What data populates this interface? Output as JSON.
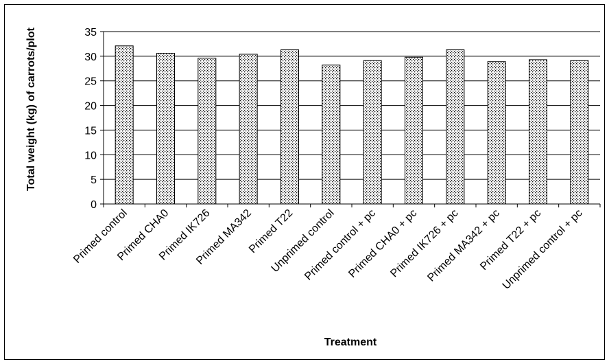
{
  "chart_data": {
    "type": "bar",
    "title": "",
    "xlabel": "Treatment",
    "ylabel": "Total weight (kg) of carrots/plot",
    "ylim": [
      0,
      35
    ],
    "yticks": [
      0,
      5,
      10,
      15,
      20,
      25,
      30,
      35
    ],
    "grid": true,
    "legend": "none",
    "categories": [
      "Primed control",
      "Primed CHA0",
      "Primed IK726",
      "Primed MA342",
      "Primed T22",
      "Unprimed control",
      "Primed control + pc",
      "Primed CHA0 + pc",
      "Primed IK726 + pc",
      "Primed MA342 + pc",
      "Primed T22 + pc",
      "Unprimed control + pc"
    ],
    "values": [
      32.1,
      30.6,
      29.6,
      30.4,
      31.3,
      28.2,
      29.1,
      29.8,
      31.3,
      28.9,
      29.3,
      29.1
    ],
    "colors": {
      "bar_fill": "#ffffff",
      "bar_pattern": "#000000",
      "gridline": "#000000",
      "axis": "#000000"
    }
  }
}
